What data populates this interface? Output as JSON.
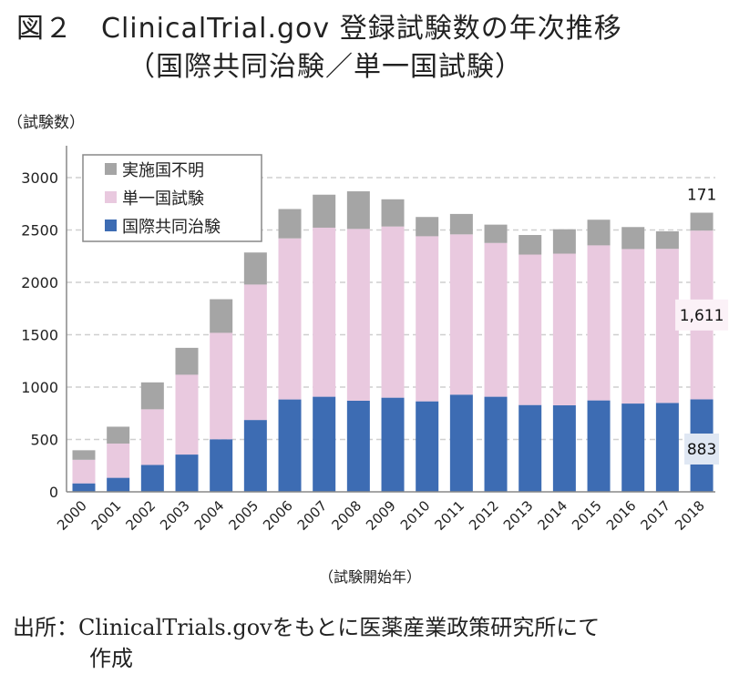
{
  "title": {
    "line1": "図２　ClinicalTrial.gov 登録試験数の年次推移",
    "line2": "（国際共同治験／単一国試験）"
  },
  "source": {
    "line1": "出所：ClinicalTrials.govをもとに医薬産業政策研究所にて",
    "line2": "作成"
  },
  "chart_data": {
    "type": "bar",
    "stacked": true,
    "xlabel": "（試験開始年）",
    "ylabel": "（試験数）",
    "ylim": [
      0,
      3000
    ],
    "yticks": [
      0,
      500,
      1000,
      1500,
      2000,
      2500,
      3000
    ],
    "grid": true,
    "legend_position": "top-left",
    "categories": [
      "2000",
      "2001",
      "2002",
      "2003",
      "2004",
      "2005",
      "2006",
      "2007",
      "2008",
      "2009",
      "2010",
      "2011",
      "2012",
      "2013",
      "2014",
      "2015",
      "2016",
      "2017",
      "2018"
    ],
    "series": [
      {
        "name": "国際共同治験",
        "color": "#3d6cb3",
        "values": [
          81,
          134,
          257,
          356,
          502,
          686,
          882,
          908,
          870,
          899,
          864,
          928,
          908,
          829,
          826,
          873,
          843,
          849,
          883
        ]
      },
      {
        "name": "単一国試験",
        "color": "#e9c9df",
        "values": [
          225,
          327,
          531,
          762,
          1016,
          1293,
          1538,
          1614,
          1640,
          1634,
          1576,
          1530,
          1468,
          1436,
          1448,
          1480,
          1475,
          1471,
          1611
        ]
      },
      {
        "name": "実施国不明",
        "color": "#a5a5a5",
        "values": [
          91,
          161,
          257,
          257,
          321,
          306,
          280,
          315,
          359,
          260,
          184,
          195,
          175,
          187,
          233,
          245,
          210,
          167,
          171
        ]
      }
    ],
    "data_labels": [
      {
        "category": "2018",
        "series": "実施国不明",
        "text": "171"
      },
      {
        "category": "2018",
        "series": "単一国試験",
        "text": "1,611"
      },
      {
        "category": "2018",
        "series": "国際共同治験",
        "text": "883"
      }
    ]
  }
}
